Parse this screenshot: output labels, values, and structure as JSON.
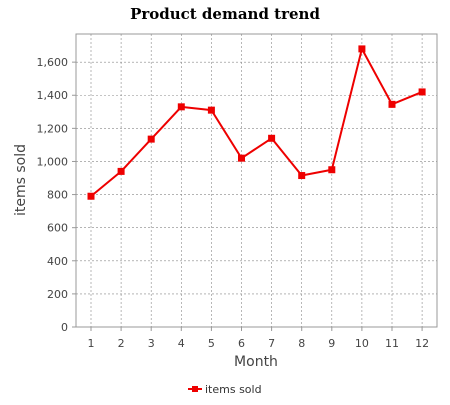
{
  "chart_data": {
    "type": "line",
    "title": "Product demand trend",
    "xlabel": "Month",
    "ylabel": "items sold",
    "categories": [
      "1",
      "2",
      "3",
      "4",
      "5",
      "6",
      "7",
      "8",
      "9",
      "10",
      "11",
      "12"
    ],
    "series": [
      {
        "name": "items sold",
        "color": "#ee0000",
        "values": [
          790,
          940,
          1135,
          1330,
          1310,
          1020,
          1140,
          915,
          950,
          1680,
          1345,
          1420
        ]
      }
    ],
    "ylim": [
      0,
      1770
    ],
    "yticks": [
      0,
      200,
      400,
      600,
      800,
      1000,
      1200,
      1400,
      1600
    ],
    "ytick_labels": [
      "0",
      "200",
      "400",
      "600",
      "800",
      "1,000",
      "1,200",
      "1,400",
      "1,600"
    ],
    "grid": true,
    "legend_position": "bottom-center",
    "colors": {
      "plot_background": "#ffffff",
      "gridline": "#888888",
      "axis": "#999999",
      "text": "#444444"
    }
  }
}
